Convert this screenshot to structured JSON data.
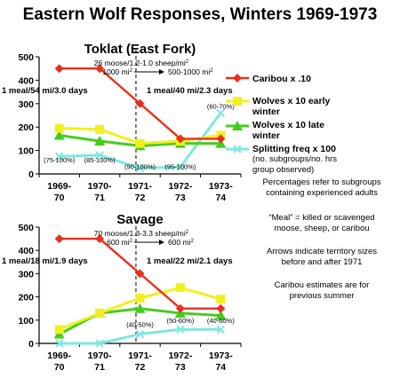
{
  "title": "Eastern Wolf Responses, Winters 1969-1973",
  "colors": {
    "caribou": "#e8301c",
    "wolves_early": "#f0f020",
    "wolves_late": "#44cc1c",
    "splitting": "#7ee8dc"
  },
  "legend": {
    "caribou": "Caribou x .10",
    "wolves_early_1": "Wolves x 10 early",
    "wolves_early_2": "winter",
    "wolves_late_1": "Wolves x 10 late",
    "wolves_late_2": "winter",
    "splitting": "Splitting freq x 100",
    "splitting_sub_1": "(no. subgroups/no. hrs",
    "splitting_sub_2": "group observed)"
  },
  "notes": {
    "pct_1": "Percentages refer to subgroups",
    "pct_2": "containing experienced adults",
    "meal_1": "“Meal” = killed or scavenged",
    "meal_2": "moose, sheep, or caribou",
    "arrows_1": "Arrows indicate territory sizes",
    "arrows_2": "before and after 1971",
    "caribou_1": "Caribou estimates are for",
    "caribou_2": "previous summer"
  },
  "chart_data": [
    {
      "type": "line",
      "title": "Toklat (East Fork)",
      "categories": [
        [
          "1969-",
          "70"
        ],
        [
          "1970-",
          "71"
        ],
        [
          "1971-",
          "72"
        ],
        [
          "1972-",
          "73"
        ],
        [
          "1973-",
          "74"
        ]
      ],
      "ylim": [
        0,
        500
      ],
      "yticks": [
        0,
        100,
        200,
        300,
        400,
        500
      ],
      "series": [
        {
          "name": "Caribou x .10",
          "color_key": "caribou",
          "marker": "diamond",
          "values": [
            450,
            450,
            300,
            150,
            150
          ]
        },
        {
          "name": "Wolves x 10 early winter",
          "color_key": "wolves_early",
          "marker": "square",
          "values": [
            195,
            190,
            130,
            140,
            165
          ]
        },
        {
          "name": "Wolves x 10 late winter",
          "color_key": "wolves_late",
          "marker": "triangle",
          "values": [
            165,
            140,
            120,
            130,
            130
          ]
        },
        {
          "name": "Splitting freq x 100",
          "color_key": "splitting",
          "marker": "x",
          "values": [
            75,
            80,
            25,
            30,
            260
          ]
        }
      ],
      "divider_x": 2.4,
      "annotations": {
        "density_1": "26 moose/1.2-1.0 sheep/mi",
        "density_2": "1000 mi",
        "density_3": "500-1000 mi",
        "meal_before": "1 meal/54 mi/3.0 days",
        "meal_after": "1 meal/40 mi/2.3 days",
        "percentages": [
          {
            "text": "(75-100%)",
            "x": 0,
            "y": 60
          },
          {
            "text": "(85-100%)",
            "x": 1,
            "y": 60
          },
          {
            "text": "(90-100%)",
            "x": 2,
            "y": 32
          },
          {
            "text": "(95-100%)",
            "x": 3,
            "y": 32
          },
          {
            "text": "(60-70%)",
            "x": 4,
            "y": 290
          }
        ]
      }
    },
    {
      "type": "line",
      "title": "Savage",
      "categories": [
        [
          "1969-",
          "70"
        ],
        [
          "1970-",
          "71"
        ],
        [
          "1971-",
          "72"
        ],
        [
          "1972-",
          "73"
        ],
        [
          "1973-",
          "74"
        ]
      ],
      "ylim": [
        0,
        500
      ],
      "yticks": [
        0,
        100,
        200,
        300,
        400,
        500
      ],
      "series": [
        {
          "name": "Caribou x .10",
          "color_key": "caribou",
          "marker": "diamond",
          "values": [
            450,
            450,
            300,
            150,
            150
          ]
        },
        {
          "name": "Wolves x 10 early winter",
          "color_key": "wolves_early",
          "marker": "square",
          "values": [
            60,
            130,
            195,
            240,
            190
          ]
        },
        {
          "name": "Wolves x 10 late winter",
          "color_key": "wolves_late",
          "marker": "triangle",
          "values": [
            40,
            130,
            150,
            130,
            120
          ]
        },
        {
          "name": "Splitting freq x 100",
          "color_key": "splitting",
          "marker": "x",
          "values": [
            0,
            0,
            40,
            60,
            60
          ]
        }
      ],
      "divider_x": 2.4,
      "annotations": {
        "density_1": "70 moose/1.3-3.3 sheep/mi",
        "density_2": "600 mi",
        "density_3": "600 mi",
        "meal_before": "1 meal/18 mi/1.9 days",
        "meal_after": "1 meal/22 mi/2.1 days",
        "percentages": [
          {
            "text": "(40-50%)",
            "x": 2,
            "y": 82
          },
          {
            "text": "(50-60%)",
            "x": 3,
            "y": 100
          },
          {
            "text": "(40-60%)",
            "x": 4,
            "y": 100
          }
        ]
      }
    }
  ]
}
